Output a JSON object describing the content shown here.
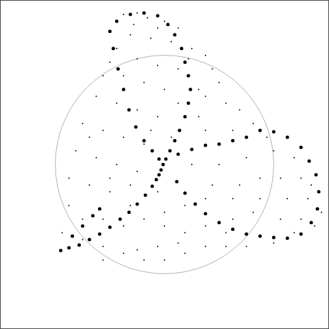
{
  "chart_data": {
    "type": "scatter",
    "xlim": [
      0,
      480
    ],
    "ylim": [
      480,
      0
    ],
    "tick_labels": false,
    "grid": false,
    "circle": {
      "center_x": 240,
      "center_y": 240,
      "radius": 160,
      "color": "#b0b0b0"
    },
    "series": [
      {
        "color": "#000000",
        "marker": "point",
        "x": [
          180,
          200,
          215,
          240,
          260,
          190,
          220,
          250,
          280,
          300,
          170,
          200,
          230,
          260,
          310,
          320,
          290,
          240,
          210,
          180,
          150,
          140,
          170,
          200,
          230,
          290,
          330,
          350,
          370,
          340,
          300,
          120,
          150,
          180,
          210,
          110,
          140,
          170,
          200,
          280,
          320,
          360,
          400,
          430,
          440,
          410,
          380,
          350,
          310,
          100,
          130,
          160,
          190,
          230,
          270,
          300,
          340,
          380,
          420,
          450,
          440,
          410,
          370,
          340,
          300,
          270,
          240,
          210,
          180,
          150,
          120,
          100,
          90,
          120,
          150,
          180,
          210,
          240,
          270,
          300,
          330,
          360,
          400,
          150,
          200,
          260,
          430,
          460,
          455,
          470,
          420,
          390,
          160,
          195,
          230,
          275,
          300,
          130,
          250,
          220,
          260,
          160,
          190,
          240,
          320,
          230,
          330
        ],
        "y": [
          20,
          18,
          25,
          30,
          40,
          50,
          55,
          60,
          70,
          80,
          70,
          85,
          95,
          100,
          100,
          120,
          130,
          130,
          120,
          110,
          110,
          140,
          150,
          160,
          170,
          170,
          150,
          160,
          180,
          190,
          190,
          180,
          190,
          200,
          210,
          220,
          230,
          240,
          250,
          240,
          240,
          230,
          220,
          230,
          260,
          260,
          260,
          270,
          270,
          260,
          270,
          280,
          270,
          280,
          300,
          290,
          290,
          290,
          290,
          290,
          320,
          320,
          310,
          320,
          330,
          340,
          330,
          320,
          330,
          320,
          320,
          300,
          340,
          350,
          360,
          370,
          380,
          380,
          370,
          360,
          360,
          360,
          355,
          380,
          365,
          355,
          340,
          330,
          270,
          310,
          200,
          200,
          90,
          35,
          40,
          85,
          140,
          200,
          200,
          190,
          150,
          260,
          300,
          310,
          210,
          360,
          340
        ]
      },
      {
        "color": "#000000",
        "marker": "circle",
        "x": [
          160,
          170,
          190,
          210,
          230,
          245,
          255,
          265,
          270,
          275,
          278,
          275,
          270,
          262,
          255,
          248,
          242,
          238,
          235,
          232,
          228,
          222,
          212,
          200,
          188,
          175,
          160,
          145,
          130,
          115,
          100,
          88,
          165,
          172,
          180,
          188,
          198,
          210,
          222,
          232,
          260,
          280,
          300,
          320,
          340,
          360,
          380,
          400,
          420,
          440,
          452,
          462,
          466,
          464,
          455,
          440,
          420,
          400,
          380,
          360,
          340,
          320,
          300,
          285,
          270,
          258,
          105,
          120,
          135,
          145
        ],
        "y": [
          45,
          30,
          20,
          18,
          22,
          35,
          50,
          70,
          90,
          110,
          130,
          150,
          170,
          190,
          205,
          220,
          232,
          240,
          248,
          255,
          262,
          272,
          285,
          298,
          310,
          320,
          332,
          342,
          350,
          358,
          362,
          366,
          70,
          100,
          130,
          160,
          185,
          205,
          220,
          232,
          225,
          218,
          212,
          210,
          205,
          200,
          190,
          192,
          200,
          215,
          235,
          255,
          280,
          305,
          325,
          342,
          348,
          347,
          345,
          342,
          335,
          325,
          312,
          298,
          282,
          265,
          345,
          330,
          315,
          305
        ]
      }
    ]
  }
}
